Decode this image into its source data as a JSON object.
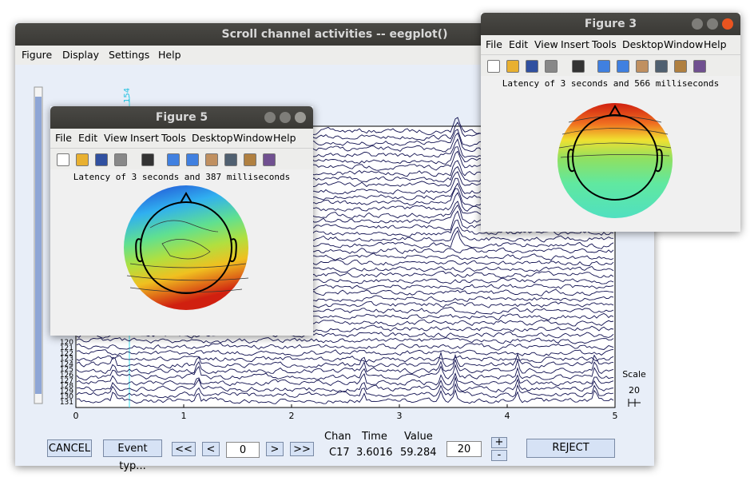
{
  "main_window": {
    "title": "Scroll channel activities -- eegplot()",
    "menu": [
      "Figure",
      "Display",
      "Settings",
      "Help"
    ],
    "marker_label": "154",
    "channel_labels": [
      "120",
      "121",
      "122",
      "123",
      "124",
      "125",
      "126",
      "127",
      "128",
      "129",
      "130",
      "131"
    ],
    "x_ticks": [
      0,
      1,
      2,
      3,
      4,
      5
    ],
    "scale_label": "Scale",
    "scale_value": "20",
    "controls": {
      "cancel": "CANCEL",
      "event_type": "Event typ...",
      "first": "<<",
      "prev": "<",
      "position": "0",
      "next": ">",
      "last": ">>",
      "chan_header": "Chan",
      "chan_value": "C17",
      "time_header": "Time",
      "time_value": "3.6016",
      "value_header": "Value",
      "value_value": "59.284",
      "spacing": "20",
      "plus": "+",
      "minus": "-",
      "reject": "REJECT"
    }
  },
  "figure5": {
    "title": "Figure 5",
    "menu": [
      "File",
      "Edit",
      "View",
      "Insert",
      "Tools",
      "Desktop",
      "Window",
      "Help"
    ],
    "caption": "Latency of 3 seconds and 387 milliseconds"
  },
  "figure3": {
    "title": "Figure 3",
    "menu": [
      "File",
      "Edit",
      "View",
      "Insert",
      "Tools",
      "Desktop",
      "Window",
      "Help"
    ],
    "caption": "Latency of 3 seconds and 566 milliseconds"
  }
}
